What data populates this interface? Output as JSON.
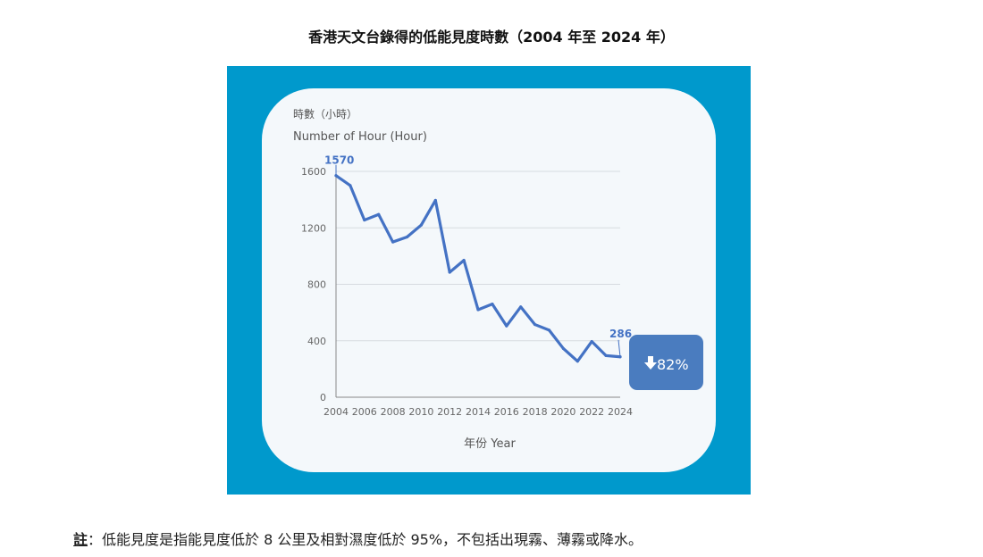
{
  "page": {
    "title": "香港天文台錄得的低能見度時數（2004 年至 2024 年）",
    "note_label": "註",
    "note_text": "：低能見度是指能見度低於 8 公里及相對濕度低於 95%，不包括出現霧、薄霧或降水。"
  },
  "chart_data": {
    "type": "line",
    "ylabel_zh": "時數（小時）",
    "ylabel": "Number of Hour (Hour)",
    "xlabel": "年份 Year",
    "x": [
      2004,
      2005,
      2006,
      2007,
      2008,
      2009,
      2010,
      2011,
      2012,
      2013,
      2014,
      2015,
      2016,
      2017,
      2018,
      2019,
      2020,
      2021,
      2022,
      2023,
      2024
    ],
    "values": [
      1570,
      1500,
      1255,
      1295,
      1100,
      1135,
      1220,
      1395,
      885,
      970,
      620,
      660,
      505,
      640,
      515,
      475,
      345,
      255,
      395,
      295,
      286
    ],
    "xlim": [
      2004,
      2024
    ],
    "ylim": [
      0,
      1600
    ],
    "yticks": [
      0,
      400,
      800,
      1200,
      1600
    ],
    "xticks": [
      2004,
      2006,
      2008,
      2010,
      2012,
      2014,
      2016,
      2018,
      2020,
      2022,
      2024
    ],
    "start_label": "1570",
    "end_label": "286",
    "change_badge": "82%",
    "grid": "horizontal",
    "line_color": "#4472c4",
    "badge_color": "#4a7cbf"
  }
}
